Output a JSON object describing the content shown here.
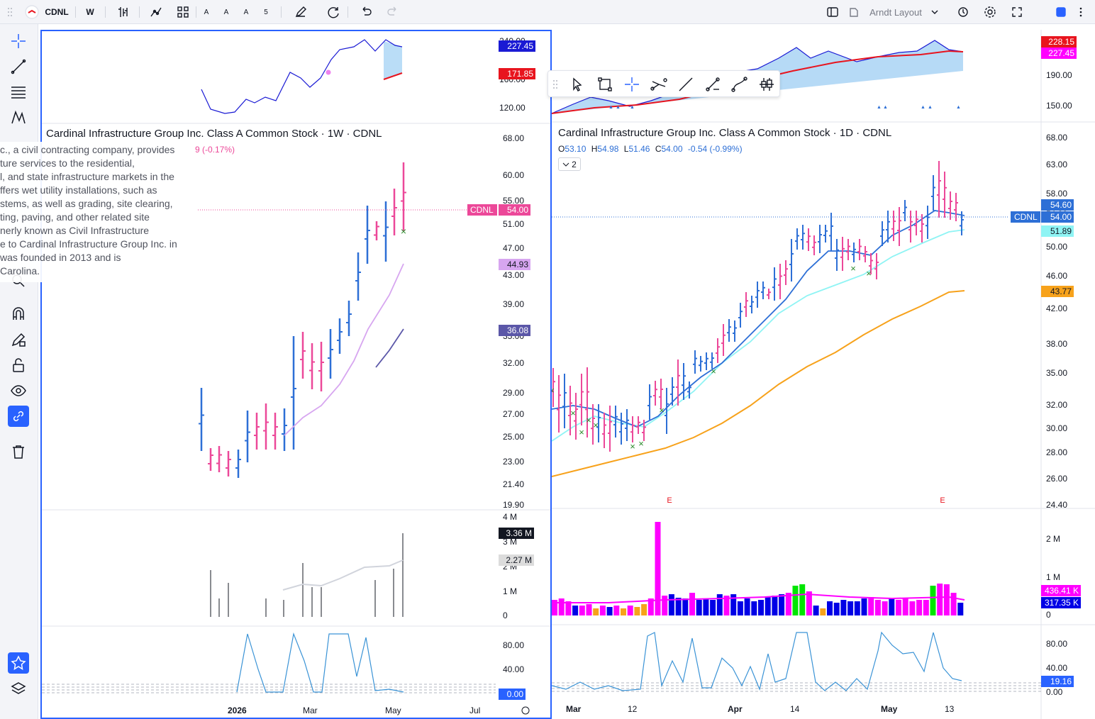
{
  "toolbar": {
    "symbol": "CDNL",
    "interval": "W",
    "a1": "A",
    "a2": "A",
    "a3": "A",
    "n5": "5",
    "layout": "Arndt Layout"
  },
  "description": {
    "lines": [
      "c., a civil contracting company, provides",
      "ture services to the residential,",
      "l, and state infrastructure markets in the",
      "ffers wet utility installations, such as",
      "stems, as well as grading, site clearing,",
      "ting, paving, and other related site",
      "nerly known as Civil Infrastructure",
      "e to Cardinal Infrastructure Group Inc. in",
      "was founded in 2013 and is",
      "Carolina."
    ]
  },
  "left_chart": {
    "title": "Cardinal Infrastructure Group Inc. Class A Common Stock · 1W · CDNL",
    "change": "9 (-0.17%)",
    "top_axis": [
      "240.00",
      "160.00",
      "120.00"
    ],
    "top_tags": [
      {
        "v": "227.45",
        "c": "#1a1ad4"
      },
      {
        "v": "171.85",
        "c": "#e8141e"
      }
    ],
    "price_axis": [
      "68.00",
      "60.00",
      "55.00",
      "51.00",
      "47.00",
      "43.00",
      "39.00",
      "35.00",
      "32.00",
      "29.00",
      "27.00",
      "25.00",
      "23.00",
      "21.40",
      "19.90"
    ],
    "price_tags": [
      {
        "v": "54.00",
        "c": "#ec4899",
        "lbl": "CDNL"
      },
      {
        "v": "44.93",
        "c": "#d7a6f0",
        "fg": "#131722"
      },
      {
        "v": "36.08",
        "c": "#5b57a8"
      }
    ],
    "vol_axis": [
      "4 M",
      "3 M",
      "2 M",
      "1 M",
      "0"
    ],
    "vol_tags": [
      {
        "v": "3.36 M",
        "c": "#131722"
      },
      {
        "v": "2.27 M",
        "c": "#dcdcdc",
        "fg": "#131722"
      }
    ],
    "osc_axis": [
      "80.00",
      "40.00"
    ],
    "osc_tag": "0.00",
    "x_labels": [
      "2026",
      "Mar",
      "May",
      "Jul"
    ]
  },
  "right_chart": {
    "title": "Cardinal Infrastructure Group Inc. Class A Common Stock · 1D · CDNL",
    "ohlc": {
      "o": "53.10",
      "h": "54.98",
      "l": "51.46",
      "c": "54.00",
      "chg": "-0.54 (-0.99%)"
    },
    "collapse": "2",
    "top_axis": [
      "190.00",
      "150.00"
    ],
    "top_tags": [
      {
        "v": "228.15",
        "c": "#e8141e"
      },
      {
        "v": "227.45",
        "c": "#ff00ff"
      }
    ],
    "price_axis": [
      "68.00",
      "63.00",
      "58.00",
      "54.00",
      "50.00",
      "46.00",
      "42.00",
      "38.00",
      "35.00",
      "32.00",
      "30.00",
      "28.00",
      "26.00",
      "24.40"
    ],
    "price_tags": [
      {
        "v": "54.60",
        "c": "#2d6fd6"
      },
      {
        "v": "54.00",
        "c": "#2d6fd6",
        "lbl": "CDNL"
      },
      {
        "v": "51.89",
        "c": "#8ff4f4",
        "fg": "#131722"
      },
      {
        "v": "43.77",
        "c": "#f7a21b",
        "fg": "#131722"
      }
    ],
    "earnings": [
      "E",
      "E"
    ],
    "vol_axis": [
      "2 M",
      "1 M",
      "0"
    ],
    "vol_tags": [
      {
        "v": "436.41 K",
        "c": "#ff00ff"
      },
      {
        "v": "317.35 K",
        "c": "#0000e6"
      }
    ],
    "osc_axis": [
      "80.00",
      "40.00",
      "0.00"
    ],
    "osc_tag": "19.16",
    "x_labels": [
      "Mar",
      "12",
      "Apr",
      "14",
      "May",
      "13"
    ]
  }
}
